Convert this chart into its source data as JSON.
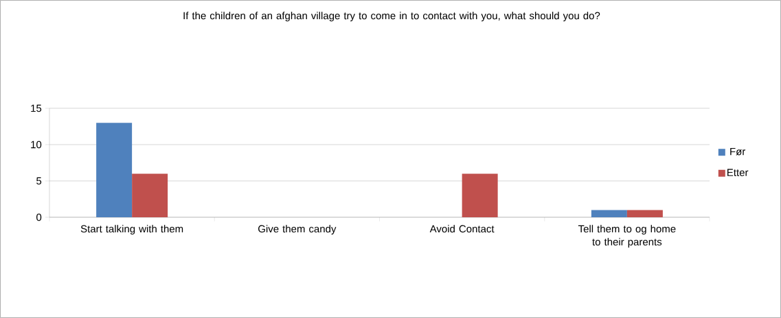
{
  "chart_data": {
    "type": "bar",
    "title": "If the children of an afghan village try to come in to contact with you, what should you do?",
    "categories": [
      "Start talking with them",
      "Give them candy",
      "Avoid Contact",
      "Tell them to og home to their parents"
    ],
    "series": [
      {
        "name": "Før",
        "color": "#4f81bd",
        "values": [
          13,
          0,
          0,
          1
        ]
      },
      {
        "name": "Etter",
        "color": "#c0504d",
        "values": [
          6,
          0,
          6,
          1
        ]
      }
    ],
    "ylim": [
      0,
      15
    ],
    "yticks": [
      0,
      5,
      10,
      15
    ],
    "grid": "y",
    "legend": "right"
  }
}
